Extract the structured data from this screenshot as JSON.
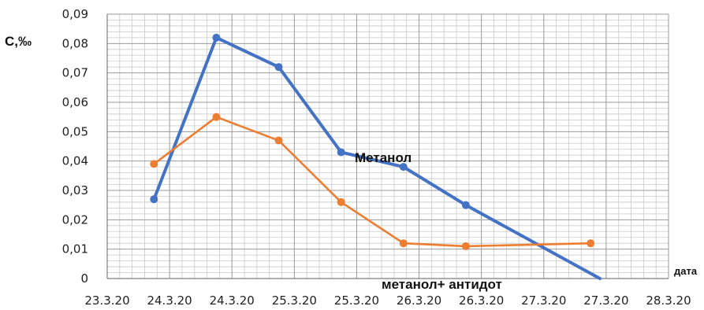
{
  "chart_data": {
    "type": "line",
    "ylabel": "C,‰",
    "xlabel": "дата",
    "x_tick_labels": [
      "23.3.20",
      "24.3.20",
      "24.3.20",
      "25.3.20",
      "25.3.20",
      "26.3.20",
      "26.3.20",
      "27.3.20",
      "27.3.20",
      "28.3.20"
    ],
    "y_tick_labels": [
      "0",
      "0,01",
      "0,02",
      "0,03",
      "0,04",
      "0,05",
      "0,06",
      "0,07",
      "0,08",
      "0,09"
    ],
    "ylim": [
      0,
      0.09
    ],
    "grid": true,
    "series": [
      {
        "name": "Метанол",
        "color": "#4472C4",
        "points": [
          {
            "x": 0.75,
            "y": 0.027
          },
          {
            "x": 1.75,
            "y": 0.082
          },
          {
            "x": 2.75,
            "y": 0.072
          },
          {
            "x": 3.75,
            "y": 0.043
          },
          {
            "x": 4.75,
            "y": 0.038
          },
          {
            "x": 5.75,
            "y": 0.025
          },
          {
            "x": 7.9,
            "y": 0.0
          }
        ]
      },
      {
        "name": "метанол+ антидот",
        "color": "#ED7D31",
        "points": [
          {
            "x": 0.75,
            "y": 0.039
          },
          {
            "x": 1.75,
            "y": 0.055
          },
          {
            "x": 2.75,
            "y": 0.047
          },
          {
            "x": 3.75,
            "y": 0.026
          },
          {
            "x": 4.75,
            "y": 0.012
          },
          {
            "x": 5.75,
            "y": 0.011
          },
          {
            "x": 7.75,
            "y": 0.012
          }
        ]
      }
    ]
  }
}
